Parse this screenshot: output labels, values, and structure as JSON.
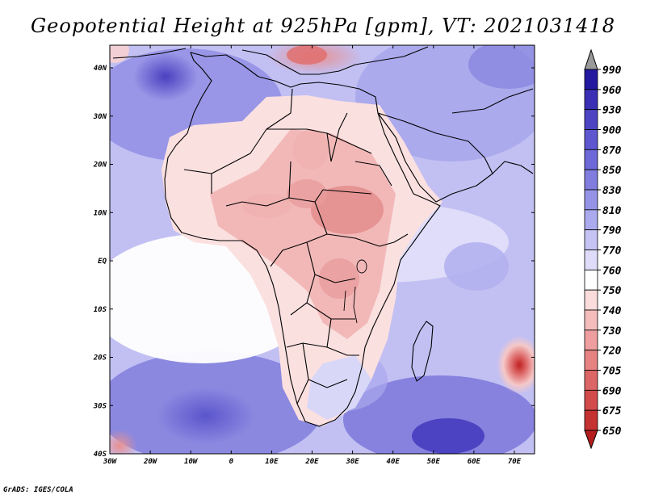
{
  "title": "Geopotential Height at 925hPa [gpm], VT: 2021031418",
  "credit": "GrADS: IGES/COLA",
  "map": {
    "lon_labels": [
      "30W",
      "20W",
      "10W",
      "0",
      "10E",
      "20E",
      "30E",
      "40E",
      "50E",
      "60E",
      "70E"
    ],
    "lat_labels": [
      "40N",
      "30N",
      "20N",
      "10N",
      "EQ",
      "10S",
      "20S",
      "30S",
      "40S"
    ]
  },
  "colorbar": {
    "levels": [
      "990",
      "960",
      "930",
      "900",
      "870",
      "850",
      "830",
      "810",
      "790",
      "770",
      "760",
      "750",
      "740",
      "730",
      "720",
      "705",
      "690",
      "675",
      "650"
    ],
    "colors": [
      "#2318a0",
      "#3b30b5",
      "#4d44c4",
      "#5e57cf",
      "#6e69d8",
      "#807ddf",
      "#9593e6",
      "#acaaee",
      "#c4c3f4",
      "#dedcf9",
      "#ffffff",
      "#fbdcdc",
      "#f5bcbc",
      "#ee9e9e",
      "#e68282",
      "#dc6565",
      "#d24a4a",
      "#c53232",
      "#b51c1c"
    ],
    "top_arrow_color": "#9a9a9a"
  }
}
